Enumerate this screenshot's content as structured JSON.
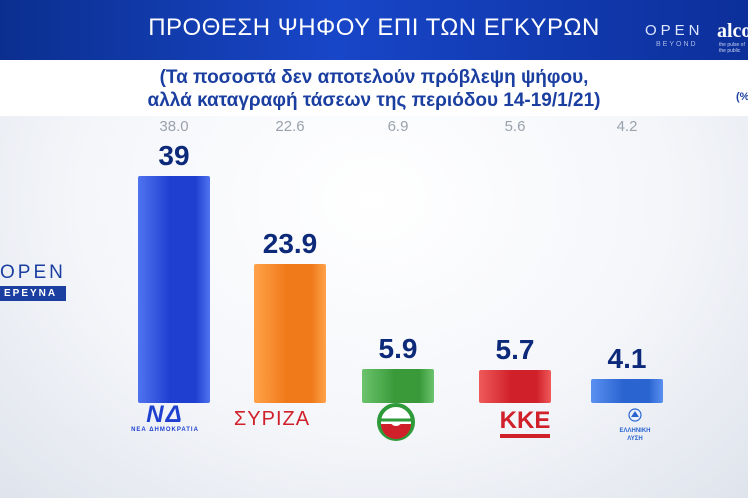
{
  "header": {
    "title": "ΠΡΟΘΕΣΗ ΨΗΦΟΥ ΕΠΙ ΤΩΝ ΕΓΚΥΡΩΝ",
    "logo_open": "OPEN",
    "logo_beyond": "BEYOND",
    "logo_alco": "alco",
    "logo_alco_sub": "the pulse of the public"
  },
  "subtitle": {
    "line1": "(Τα ποσοστά δεν αποτελούν πρόβλεψη ψήφου,",
    "line2": "αλλά καταγραφή τάσεων της περιόδου 14-19/1/21)",
    "unit_note": "(%"
  },
  "side_logo": {
    "open": "OPEN",
    "erevna": "ΕΡΕΥΝΑ"
  },
  "parties": {
    "nd": {
      "abbr": "ΝΔ",
      "sub": "ΝΕΑ ΔΗΜΟΚΡΑΤΙΑ"
    },
    "syriza": {
      "text": "ΣΥΡΙΖΑ"
    },
    "kinal": {
      "text": ""
    },
    "kke": {
      "text": "ΚΚΕ"
    },
    "el": {
      "line1": "ΕΛΛΗΝΙΚΗ",
      "line2": "ΛΥΣΗ"
    }
  },
  "chart_data": {
    "type": "bar",
    "categories": [
      "ΝΔ",
      "ΣΥΡΙΖΑ",
      "ΚΙΝΑΛ",
      "ΚΚΕ",
      "ΕΛΛΗΝΙΚΗ ΛΥΣΗ"
    ],
    "series": [
      {
        "values": [
          39,
          23.9,
          5.9,
          5.7,
          4.1
        ]
      },
      {
        "values": [
          38.0,
          22.6,
          6.9,
          5.6,
          4.2
        ]
      }
    ],
    "current_labels": [
      "39",
      "23.9",
      "5.9",
      "5.7",
      "4.1"
    ],
    "previous_labels": [
      "38.0",
      "22.6",
      "6.9",
      "5.6",
      "4.2"
    ],
    "colors": [
      "#1f3fd0",
      "#f07a1a",
      "#3a9a3a",
      "#d0202a",
      "#2a64d0"
    ],
    "colors_light": [
      "#4f74f0",
      "#ffa24a",
      "#6cc46c",
      "#ef5a5a",
      "#5a90f0"
    ],
    "ylim": [
      0,
      40
    ]
  }
}
